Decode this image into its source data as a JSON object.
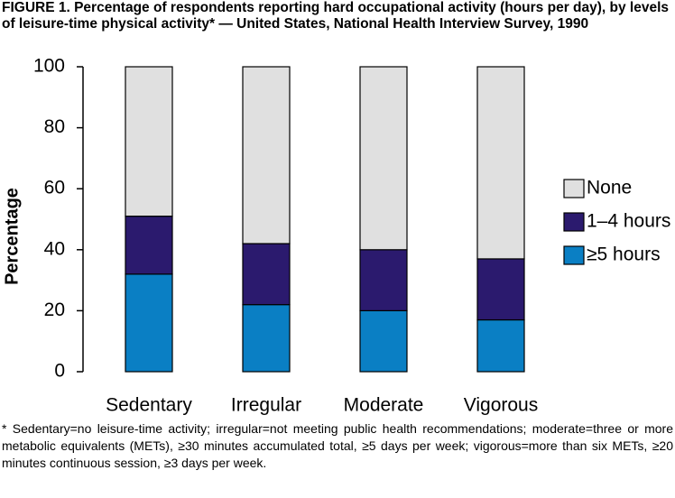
{
  "chart_data": {
    "type": "bar",
    "stacked": true,
    "title": "FIGURE 1. Percentage of respondents reporting hard occupational activity (hours per day), by levels of leisure-time physical activity* — United States, National Health Interview Survey, 1990",
    "y_label": "Percentage",
    "categories": [
      "Sedentary",
      "Irregular",
      "Moderate",
      "Vigorous"
    ],
    "series": [
      {
        "name": "≥5 hours",
        "color": "#0a7fc4",
        "values": [
          32,
          22,
          20,
          17
        ]
      },
      {
        "name": "1–4 hours",
        "color": "#2b1a6e",
        "values": [
          19,
          20,
          20,
          20
        ]
      },
      {
        "name": "None",
        "color": "#e0e0e0",
        "values": [
          49,
          58,
          60,
          63
        ]
      }
    ],
    "ylim": [
      0,
      100
    ],
    "yticks": [
      0,
      20,
      40,
      60,
      80,
      100
    ],
    "legend": "right",
    "footnote": "* Sedentary=no leisure-time activity; irregular=not meeting public health recommendations; moderate=three or more metabolic equivalents (METs), ≥30 minutes accumulated total, ≥5 days per week; vigorous=more than six METs, ≥20 minutes continuous session, ≥3 days per week."
  }
}
